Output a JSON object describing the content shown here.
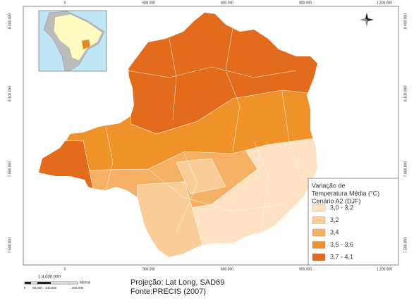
{
  "map": {
    "x_labels": [
      "0",
      "300.000",
      "600.000",
      "900.000",
      "1.200.000"
    ],
    "y_labels": [
      "8.400.000",
      "8.100.000",
      "7.800.000",
      "7.500.000"
    ],
    "legend": {
      "title": [
        "Variação de",
        "Temperatura Média (°C)",
        "Cenário A2 (DJF)"
      ],
      "items": [
        {
          "label": "3,0 - 3,2",
          "color": "#fde3c4"
        },
        {
          "label": "3,2",
          "color": "#f9cc98"
        },
        {
          "label": "3,4",
          "color": "#f5b064"
        },
        {
          "label": "3,5 - 3,6",
          "color": "#f0922a"
        },
        {
          "label": "3,7 - 4,1",
          "color": "#e26b1c"
        }
      ]
    },
    "scale": {
      "ratio": "1:4.000.000",
      "ticks": [
        "0",
        "50.000",
        "100.000",
        "200.000"
      ],
      "unit": "Metros"
    },
    "footer": {
      "projection": "Projeção: Lat Long, SAD69",
      "source": "Fonte:PRECIS (2007)"
    }
  }
}
